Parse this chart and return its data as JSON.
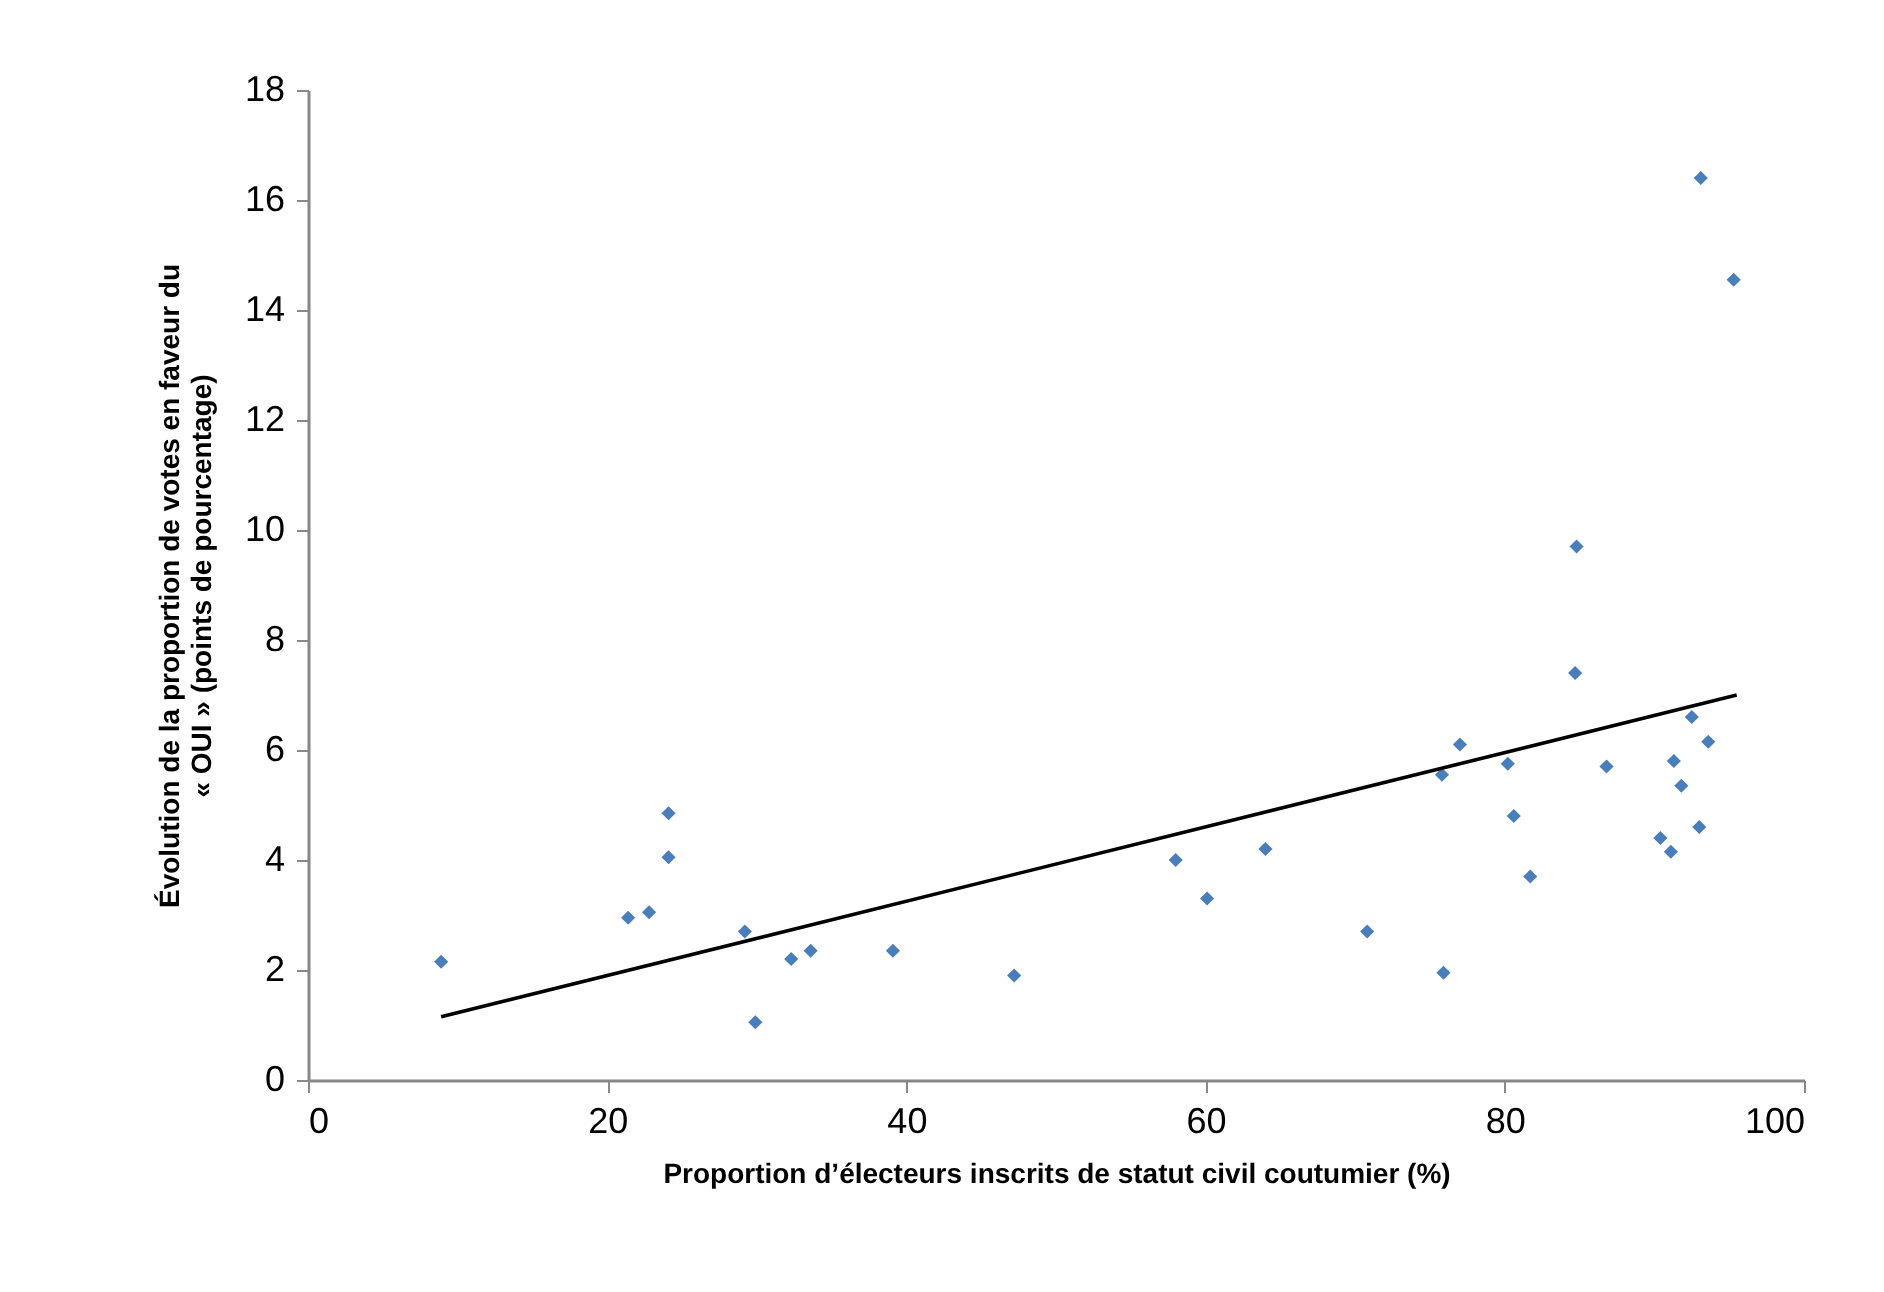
{
  "chart_data": {
    "type": "scatter",
    "xlabel": "Proportion d’électeurs inscrits de statut civil coutumier (%)",
    "ylabel": "Évolution de la proportion de votes en faveur du\n« OUI »  (points de pourcentage)",
    "xlim": [
      0,
      100
    ],
    "xticks": [
      0,
      20,
      40,
      60,
      80,
      100
    ],
    "ylim": [
      0,
      18
    ],
    "yticks": [
      0,
      2,
      4,
      6,
      8,
      10,
      12,
      14,
      16,
      18
    ],
    "series": [
      {
        "color": "#4a7ebb",
        "marker": "diamond",
        "x": [
          8.9,
          21.4,
          22.8,
          24.1,
          24.1,
          29.2,
          29.9,
          32.3,
          33.6,
          39.1,
          47.2,
          58.0,
          60.1,
          64.0,
          70.8,
          75.9,
          75.8,
          77.0,
          80.2,
          80.6,
          81.7,
          84.7,
          84.8,
          86.8,
          90.4,
          91.1,
          91.3,
          91.8,
          92.5,
          93.0,
          93.6,
          93.1,
          95.3
        ],
        "values": [
          2.15,
          2.95,
          3.05,
          4.05,
          4.85,
          2.7,
          1.05,
          2.2,
          2.35,
          2.35,
          1.9,
          4.0,
          3.3,
          4.2,
          2.7,
          1.95,
          5.55,
          6.1,
          5.75,
          4.8,
          3.7,
          7.4,
          9.7,
          5.7,
          4.4,
          4.15,
          5.8,
          5.35,
          6.6,
          4.6,
          6.15,
          16.4,
          14.55
        ]
      },
      {
        "type": "line",
        "color": "#000000",
        "marker": "none",
        "x": [
          8.9,
          95.5
        ],
        "values": [
          1.15,
          7.0
        ]
      }
    ]
  }
}
